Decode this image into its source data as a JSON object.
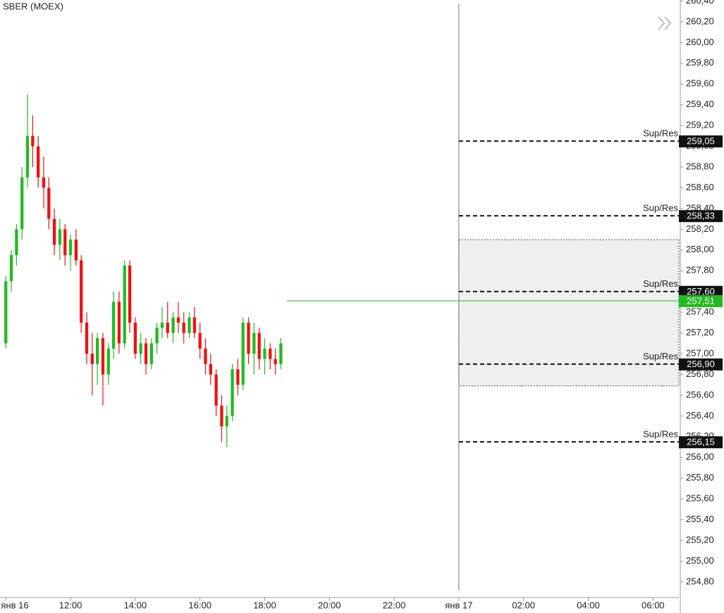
{
  "chart_data": {
    "type": "candlestick",
    "title": "SBER (MOEX)",
    "x": [
      10.0,
      10.17,
      10.33,
      10.5,
      10.67,
      10.83,
      11.0,
      11.17,
      11.33,
      11.5,
      11.67,
      11.83,
      12.0,
      12.17,
      12.33,
      12.5,
      12.67,
      12.83,
      13.0,
      13.17,
      13.33,
      13.5,
      13.67,
      13.83,
      14.0,
      14.17,
      14.33,
      14.5,
      14.67,
      14.83,
      15.0,
      15.17,
      15.33,
      15.5,
      15.67,
      15.83,
      16.0,
      16.17,
      16.33,
      16.5,
      16.67,
      16.83,
      17.0,
      17.17,
      17.33,
      17.5,
      17.67,
      17.83,
      18.0,
      18.17,
      18.33,
      18.5
    ],
    "open": [
      257.1,
      257.7,
      257.95,
      258.2,
      258.7,
      259.1,
      259.0,
      258.7,
      258.6,
      258.3,
      258.05,
      258.2,
      257.95,
      258.1,
      257.9,
      257.3,
      257.0,
      256.9,
      257.15,
      256.8,
      257.05,
      257.5,
      257.1,
      257.85,
      257.3,
      257.0,
      257.1,
      256.9,
      257.1,
      257.25,
      257.3,
      257.2,
      257.35,
      257.3,
      257.2,
      257.35,
      257.2,
      257.05,
      256.9,
      256.8,
      256.5,
      256.3,
      256.4,
      256.85,
      256.7,
      257.3,
      257.0,
      257.2,
      256.95,
      257.05,
      256.95,
      256.9
    ],
    "high": [
      257.75,
      258.0,
      258.25,
      258.8,
      259.5,
      259.3,
      259.1,
      258.9,
      258.7,
      258.4,
      258.3,
      258.25,
      258.15,
      258.2,
      257.95,
      257.4,
      257.2,
      257.2,
      257.2,
      257.1,
      257.6,
      257.6,
      257.9,
      257.9,
      257.35,
      257.2,
      257.15,
      257.15,
      257.3,
      257.45,
      257.5,
      257.4,
      257.5,
      257.4,
      257.4,
      257.45,
      257.3,
      257.15,
      257.0,
      256.85,
      256.6,
      256.5,
      256.9,
      256.95,
      257.35,
      257.35,
      257.3,
      257.25,
      257.15,
      257.1,
      257.05,
      257.15
    ],
    "low": [
      257.05,
      257.6,
      257.85,
      258.1,
      258.6,
      258.8,
      258.6,
      258.4,
      258.2,
      257.95,
      257.9,
      257.85,
      257.8,
      257.85,
      257.2,
      256.9,
      256.6,
      256.7,
      256.5,
      256.7,
      256.95,
      257.0,
      257.05,
      257.2,
      256.95,
      256.9,
      256.8,
      256.85,
      257.0,
      257.15,
      257.15,
      257.1,
      257.2,
      257.1,
      257.15,
      257.15,
      256.95,
      256.8,
      256.7,
      256.4,
      256.15,
      256.1,
      256.35,
      256.6,
      256.65,
      256.9,
      256.8,
      256.85,
      256.8,
      256.85,
      256.8,
      256.85
    ],
    "close": [
      257.7,
      257.95,
      258.2,
      258.7,
      259.1,
      259.0,
      258.7,
      258.6,
      258.3,
      258.05,
      258.2,
      257.95,
      258.1,
      257.9,
      257.3,
      257.0,
      256.9,
      257.15,
      256.8,
      257.05,
      257.5,
      257.1,
      257.85,
      257.3,
      257.0,
      257.1,
      256.9,
      257.1,
      257.25,
      257.3,
      257.2,
      257.35,
      257.3,
      257.2,
      257.35,
      257.2,
      257.05,
      256.9,
      256.8,
      256.5,
      256.3,
      256.4,
      256.85,
      256.7,
      257.3,
      257.0,
      257.2,
      256.95,
      257.05,
      256.95,
      256.9,
      257.1
    ],
    "up_color": "#22bb22",
    "down_color": "#ee1111",
    "xlim": [
      9.82,
      30.8
    ],
    "xticks": [
      {
        "value": 10,
        "label": "янв 16"
      },
      {
        "value": 12,
        "label": "12:00"
      },
      {
        "value": 14,
        "label": "14:00"
      },
      {
        "value": 16,
        "label": "16:00"
      },
      {
        "value": 18,
        "label": "18:00"
      },
      {
        "value": 20,
        "label": "20:00"
      },
      {
        "value": 22,
        "label": "22:00"
      },
      {
        "value": 24,
        "label": "янв 17"
      },
      {
        "value": 26,
        "label": "02:00"
      },
      {
        "value": 28,
        "label": "04:00"
      },
      {
        "value": 30,
        "label": "06:00"
      }
    ],
    "day_break": 24,
    "ylim": [
      254.65,
      260.41
    ],
    "yticks": [
      {
        "value": 254.8,
        "label": "254,80"
      },
      {
        "value": 255.0,
        "label": "255,00"
      },
      {
        "value": 255.2,
        "label": "255,20"
      },
      {
        "value": 255.4,
        "label": "255,40"
      },
      {
        "value": 255.6,
        "label": "255,60"
      },
      {
        "value": 255.8,
        "label": "255,80"
      },
      {
        "value": 256.0,
        "label": "256,00"
      },
      {
        "value": 256.2,
        "label": "256,20"
      },
      {
        "value": 256.4,
        "label": "256,40"
      },
      {
        "value": 256.6,
        "label": "256,60"
      },
      {
        "value": 256.8,
        "label": "256,80"
      },
      {
        "value": 257.0,
        "label": "257,00"
      },
      {
        "value": 257.2,
        "label": "257,20"
      },
      {
        "value": 257.4,
        "label": "257,40"
      },
      {
        "value": 257.6,
        "label": "257,60"
      },
      {
        "value": 257.8,
        "label": "257,80"
      },
      {
        "value": 258.0,
        "label": "258,00"
      },
      {
        "value": 258.2,
        "label": "258,20"
      },
      {
        "value": 258.4,
        "label": "258,40"
      },
      {
        "value": 258.6,
        "label": "258,60"
      },
      {
        "value": 258.8,
        "label": "258,80"
      },
      {
        "value": 259.0,
        "label": "259,00"
      },
      {
        "value": 259.2,
        "label": "259,20"
      },
      {
        "value": 259.4,
        "label": "259,40"
      },
      {
        "value": 259.6,
        "label": "259,60"
      },
      {
        "value": 259.8,
        "label": "259,80"
      },
      {
        "value": 260.0,
        "label": "260,00"
      },
      {
        "value": 260.2,
        "label": "260,20"
      },
      {
        "value": 260.4,
        "label": "260,40"
      }
    ],
    "zone": [
      256.69,
      258.1
    ],
    "levels": [
      {
        "name": "Sup/Res",
        "value": 259.05,
        "value_label": "259,05"
      },
      {
        "name": "Sup/Res",
        "value": 258.33,
        "value_label": "258,33"
      },
      {
        "name": "Sup/Res",
        "value": 257.6,
        "value_label": "257,60"
      },
      {
        "name": "Sup/Res",
        "value": 256.9,
        "value_label": "256,90"
      },
      {
        "name": "Sup/Res",
        "value": 256.15,
        "value_label": "256,15"
      }
    ],
    "last_price": {
      "value": 257.51,
      "label": "257,51",
      "color": "#22bb22"
    }
  }
}
